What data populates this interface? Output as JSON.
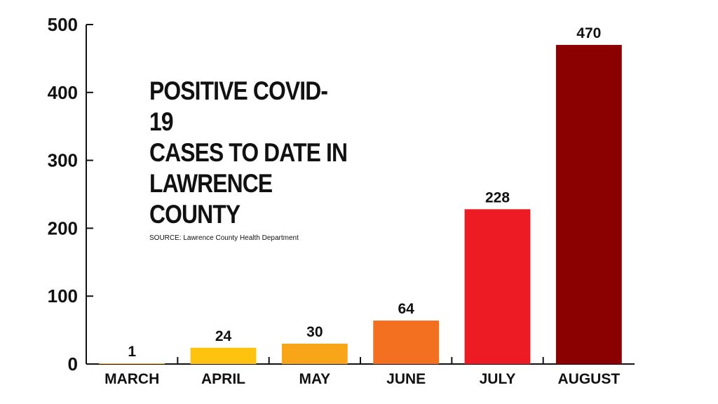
{
  "chart_data": {
    "type": "bar",
    "title": "POSITIVE COVID-19\nCASES TO DATE IN\nLAWRENCE COUNTY",
    "subtitle": "SOURCE: Lawrence County Health Department",
    "categories": [
      "MARCH",
      "APRIL",
      "MAY",
      "JUNE",
      "JULY",
      "AUGUST"
    ],
    "values": [
      1,
      24,
      30,
      64,
      228,
      470
    ],
    "colors": [
      "#F9C80E",
      "#FFC20E",
      "#F9A51A",
      "#F37021",
      "#ED1C24",
      "#8B0000"
    ],
    "data_labels": [
      "1",
      "24",
      "30",
      "64",
      "228",
      "470"
    ],
    "yticks": [
      0,
      100,
      200,
      300,
      400,
      500
    ],
    "ylim": [
      0,
      500
    ],
    "xlabel": "",
    "ylabel": "",
    "grid": false,
    "legend": "none"
  }
}
